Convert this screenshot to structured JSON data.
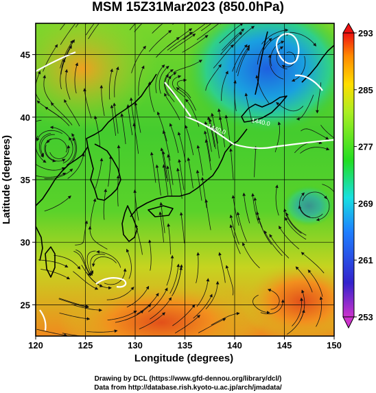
{
  "title": "MSM 15Z31Mar2023 (850.0hPa)",
  "x_axis": {
    "label": "Longitude (degrees)",
    "range": [
      120,
      150
    ],
    "ticks": [
      "120",
      "125",
      "130",
      "135",
      "140",
      "145",
      "150"
    ]
  },
  "y_axis": {
    "label": "Latitude  (degrees)",
    "range": [
      22.5,
      47.5
    ],
    "ticks": [
      "25",
      "30",
      "35",
      "40",
      "45"
    ]
  },
  "colorbar": {
    "range": [
      253,
      293
    ],
    "ticks": [
      "293",
      "285",
      "277",
      "269",
      "261",
      "253"
    ]
  },
  "contour_labels": [
    "1440.0",
    "1440.0"
  ],
  "credits": [
    "Drawing by DCL (https://www.gfd-dennou.org/library/dcl/)",
    "Data from http://database.rish.kyoto-u.ac.jp/arch/jmadata/"
  ],
  "colors": {
    "warm": "#e65a10",
    "mid": "#3ccc2a",
    "cold": "#2a6fe0",
    "contour": "#ffffff",
    "streamline": "#111111"
  }
}
